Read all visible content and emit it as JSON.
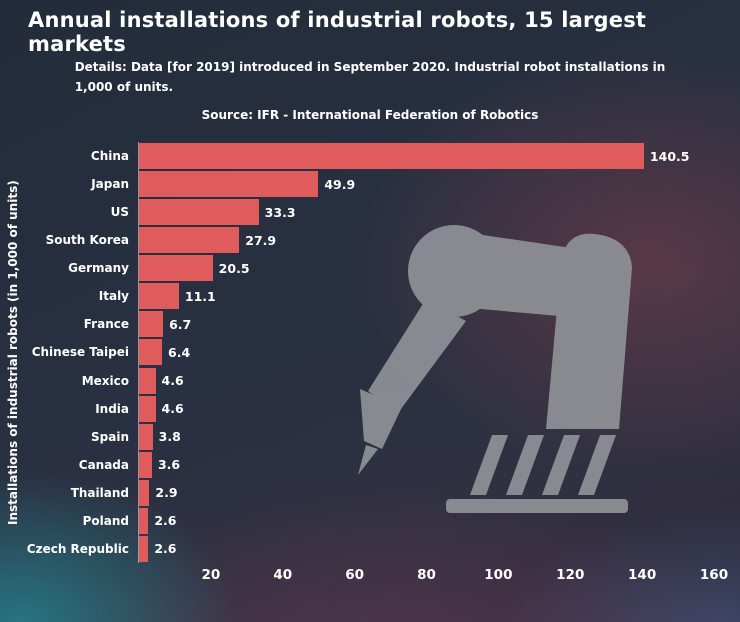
{
  "title": "Annual installations of industrial robots, 15 largest markets",
  "details": {
    "line1": "Details: Data [for 2019] introduced in September 2020. Industrial robot installations in",
    "line2": "1,000 of units."
  },
  "source": "Source: IFR - International Federation of Robotics",
  "colors": {
    "bar": "#e05c5c",
    "text": "#ffffff",
    "robot_silhouette": "#8e9196"
  },
  "chart_data": {
    "type": "bar",
    "orientation": "horizontal",
    "title": "Annual installations of industrial robots, 15 largest markets",
    "xlabel": "",
    "ylabel": "Installations of industrial robots (in 1,000 of units)",
    "categories": [
      "China",
      "Japan",
      "US",
      "South Korea",
      "Germany",
      "Italy",
      "France",
      "Chinese Taipei",
      "Mexico",
      "India",
      "Spain",
      "Canada",
      "Thailand",
      "Poland",
      "Czech Republic"
    ],
    "values": [
      140.5,
      49.9,
      33.3,
      27.9,
      20.5,
      11.1,
      6.7,
      6.4,
      4.6,
      4.6,
      3.8,
      3.6,
      2.9,
      2.6,
      2.6
    ],
    "value_labels": [
      "140.5",
      "49.9",
      "33.3",
      "27.9",
      "20.5",
      "11.1",
      "6.7",
      "6.4",
      "4.6",
      "4.6",
      "3.8",
      "3.6",
      "2.9",
      "2.6",
      "2.6"
    ],
    "x_ticks": [
      20,
      40,
      60,
      80,
      100,
      120,
      140,
      160
    ],
    "xlim": [
      0,
      160
    ],
    "grid": false,
    "legend": false
  }
}
